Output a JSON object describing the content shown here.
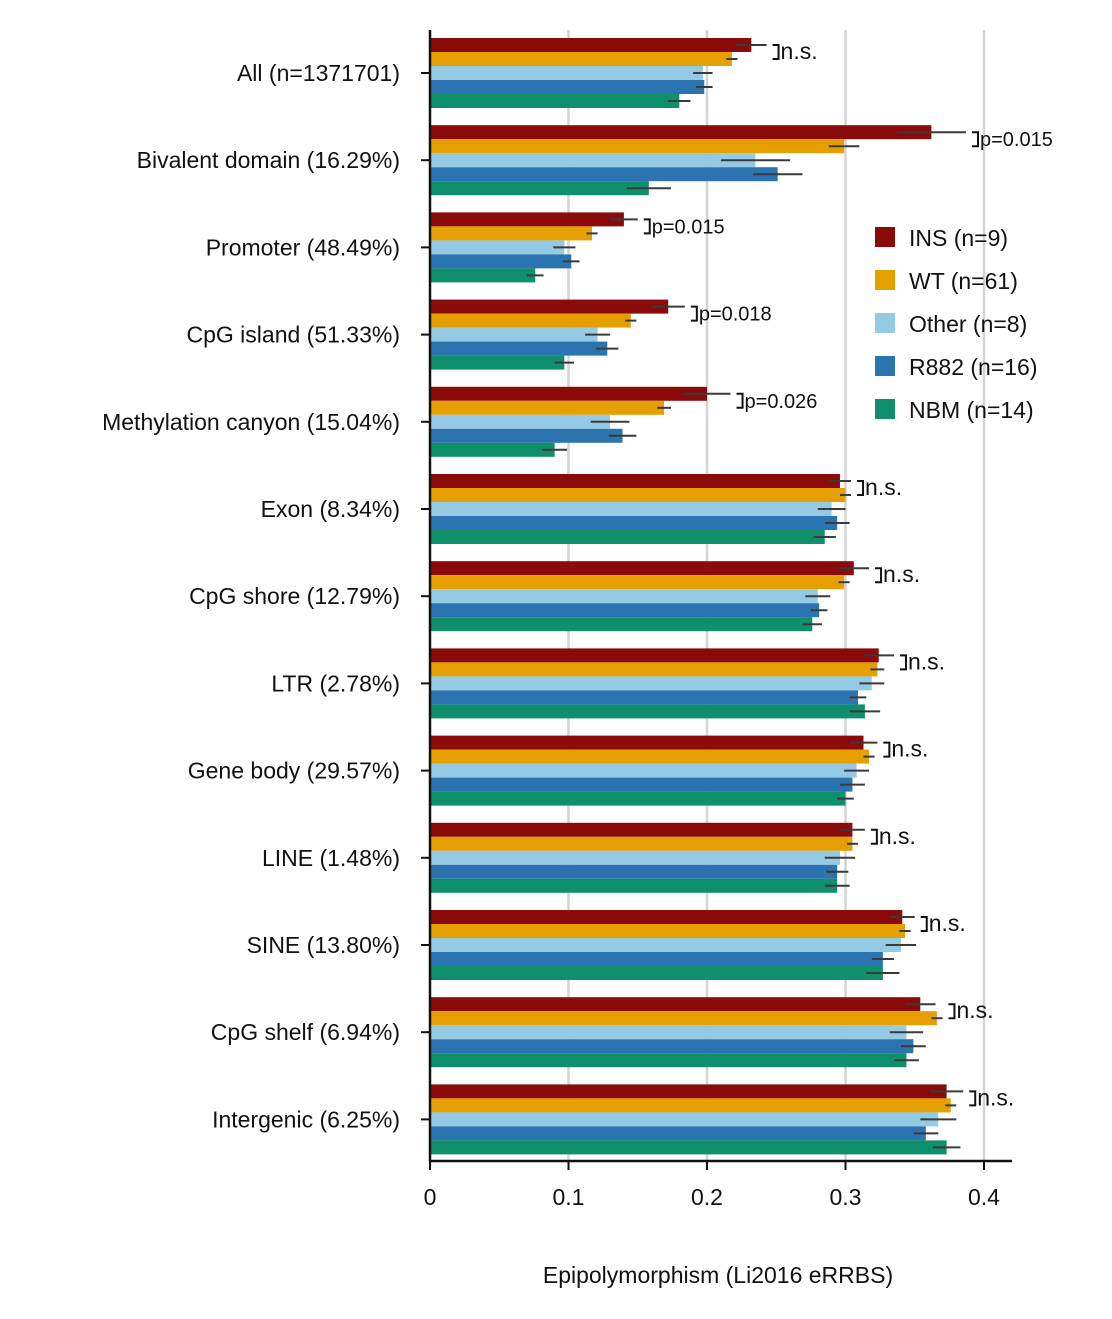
{
  "chart_data": {
    "type": "bar",
    "orientation": "horizontal",
    "xlabel": "Epipolymorphism (Li2016 eRRBS)",
    "xlim": [
      0,
      0.42
    ],
    "xticks": [
      0,
      0.1,
      0.2,
      0.3,
      0.4
    ],
    "xtick_labels": [
      "0",
      "0.1",
      "0.2",
      "0.3",
      "0.4"
    ],
    "grid": "vertical",
    "legend_position": "upper-right",
    "categories": [
      "All (n=1371701)",
      "Bivalent domain (16.29%)",
      "Promoter (48.49%)",
      "CpG island (51.33%)",
      "Methylation canyon (15.04%)",
      "Exon (8.34%)",
      "CpG shore (12.79%)",
      "LTR (2.78%)",
      "Gene body (29.57%)",
      "LINE (1.48%)",
      "SINE (13.80%)",
      "CpG shelf (6.94%)",
      "Intergenic (6.25%)"
    ],
    "series": [
      {
        "name": "INS (n=9)",
        "color": "#8b0a0a",
        "values": [
          0.232,
          0.362,
          0.14,
          0.172,
          0.2,
          0.296,
          0.306,
          0.324,
          0.313,
          0.305,
          0.341,
          0.354,
          0.373
        ],
        "errors": [
          0.011,
          0.025,
          0.01,
          0.012,
          0.017,
          0.008,
          0.011,
          0.011,
          0.01,
          0.009,
          0.009,
          0.011,
          0.012
        ]
      },
      {
        "name": "WT (n=61)",
        "color": "#e69f00",
        "values": [
          0.218,
          0.299,
          0.117,
          0.145,
          0.169,
          0.3,
          0.299,
          0.323,
          0.317,
          0.305,
          0.343,
          0.366,
          0.376
        ],
        "errors": [
          0.004,
          0.011,
          0.004,
          0.004,
          0.005,
          0.004,
          0.004,
          0.005,
          0.004,
          0.004,
          0.004,
          0.004,
          0.004
        ]
      },
      {
        "name": "Other (n=8)",
        "color": "#94cae3",
        "values": [
          0.197,
          0.235,
          0.097,
          0.121,
          0.13,
          0.29,
          0.28,
          0.319,
          0.308,
          0.296,
          0.34,
          0.344,
          0.367
        ],
        "errors": [
          0.007,
          0.025,
          0.008,
          0.009,
          0.014,
          0.01,
          0.009,
          0.009,
          0.009,
          0.011,
          0.011,
          0.012,
          0.013
        ]
      },
      {
        "name": "R882 (n=16)",
        "color": "#2c74b0",
        "values": [
          0.198,
          0.251,
          0.102,
          0.128,
          0.139,
          0.294,
          0.281,
          0.309,
          0.305,
          0.294,
          0.327,
          0.349,
          0.358
        ],
        "errors": [
          0.006,
          0.018,
          0.006,
          0.008,
          0.01,
          0.009,
          0.006,
          0.006,
          0.009,
          0.008,
          0.008,
          0.009,
          0.009
        ]
      },
      {
        "name": "NBM (n=14)",
        "color": "#0f8f6b",
        "values": [
          0.18,
          0.158,
          0.076,
          0.097,
          0.09,
          0.285,
          0.276,
          0.314,
          0.3,
          0.294,
          0.327,
          0.344,
          0.373
        ],
        "errors": [
          0.008,
          0.016,
          0.006,
          0.007,
          0.009,
          0.008,
          0.007,
          0.011,
          0.006,
          0.009,
          0.012,
          0.009,
          0.01
        ]
      }
    ],
    "annotations": [
      "n.s.",
      "p=0.015",
      "p=0.015",
      "p=0.018",
      "p=0.026",
      "n.s.",
      "n.s.",
      "n.s.",
      "n.s.",
      "n.s.",
      "n.s.",
      "n.s.",
      "n.s."
    ]
  }
}
